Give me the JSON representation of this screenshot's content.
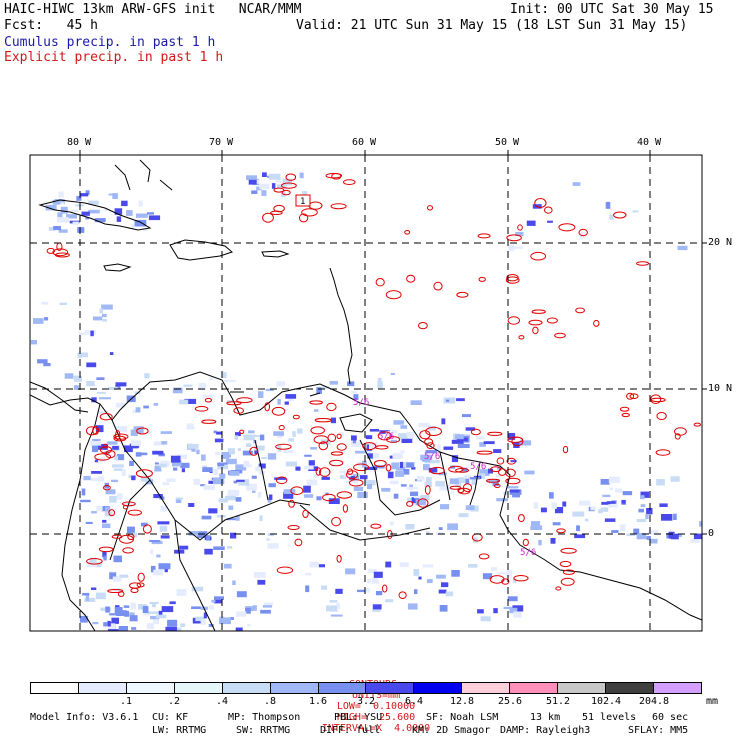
{
  "header": {
    "title": "HAIC-HIWC 13km ARW-GFS init   NCAR/MMM",
    "init": "Init: 00 UTC Sat 30 May 15",
    "fcst": "Fcst:   45 h",
    "valid": "Valid: 21 UTC Sun 31 May 15 (18 LST Sun 31 May 15)",
    "field1": "Cumulus precip. in past 1 h",
    "field2": "Explicit precip. in past 1 h"
  },
  "map": {
    "lon_labels": [
      "80 W",
      "70 W",
      "60 W",
      "50 W",
      "40 W"
    ],
    "lat_labels": [
      "20 N",
      "10 N",
      "0"
    ],
    "contour_labels": [
      "1",
      "5/6",
      "5/6",
      "5/6",
      "5/6",
      "5/6"
    ],
    "colors": {
      "land_line": "#000000",
      "grid": "#000000",
      "contour": "#e00000",
      "contour_label": "#d020d0"
    }
  },
  "contour_info": {
    "contours": "CONTOURS:",
    "units": "UNITS=mm",
    "low": "LOW=  0.10000",
    "high": "HIGH=  25.600",
    "interval": "INTERVAL=X  4.0000"
  },
  "colorbar": {
    "colors": [
      "#ffffff",
      "#e6ecff",
      "#f0f8ff",
      "#e6f7fa",
      "#c8dcf5",
      "#a0b8f5",
      "#7890f0",
      "#4a4aec",
      "#0000f0",
      "#ffd0dc",
      "#ff90bc",
      "#c8c8c8",
      "#404040",
      "#d4a0ff"
    ],
    "labels": [
      ".1",
      ".2",
      ".4",
      ".8",
      "1.6",
      "3.2",
      "6.4",
      "12.8",
      "25.6",
      "51.2",
      "102.4",
      "204.8"
    ],
    "unit": "mm"
  },
  "model_info": {
    "line1": [
      "Model Info: V3.6.1",
      "CU: KF",
      "MP: Thompson",
      "PBL: YSU",
      "SF: Noah LSM",
      "13 km",
      "51 levels",
      "60 sec"
    ],
    "line2": [
      "LW: RRTMG",
      "SW: RRTMG",
      "DIFF: full",
      "KM: 2D Smagor",
      "DAMP: Rayleigh3",
      "SFLAY: MM5"
    ]
  }
}
